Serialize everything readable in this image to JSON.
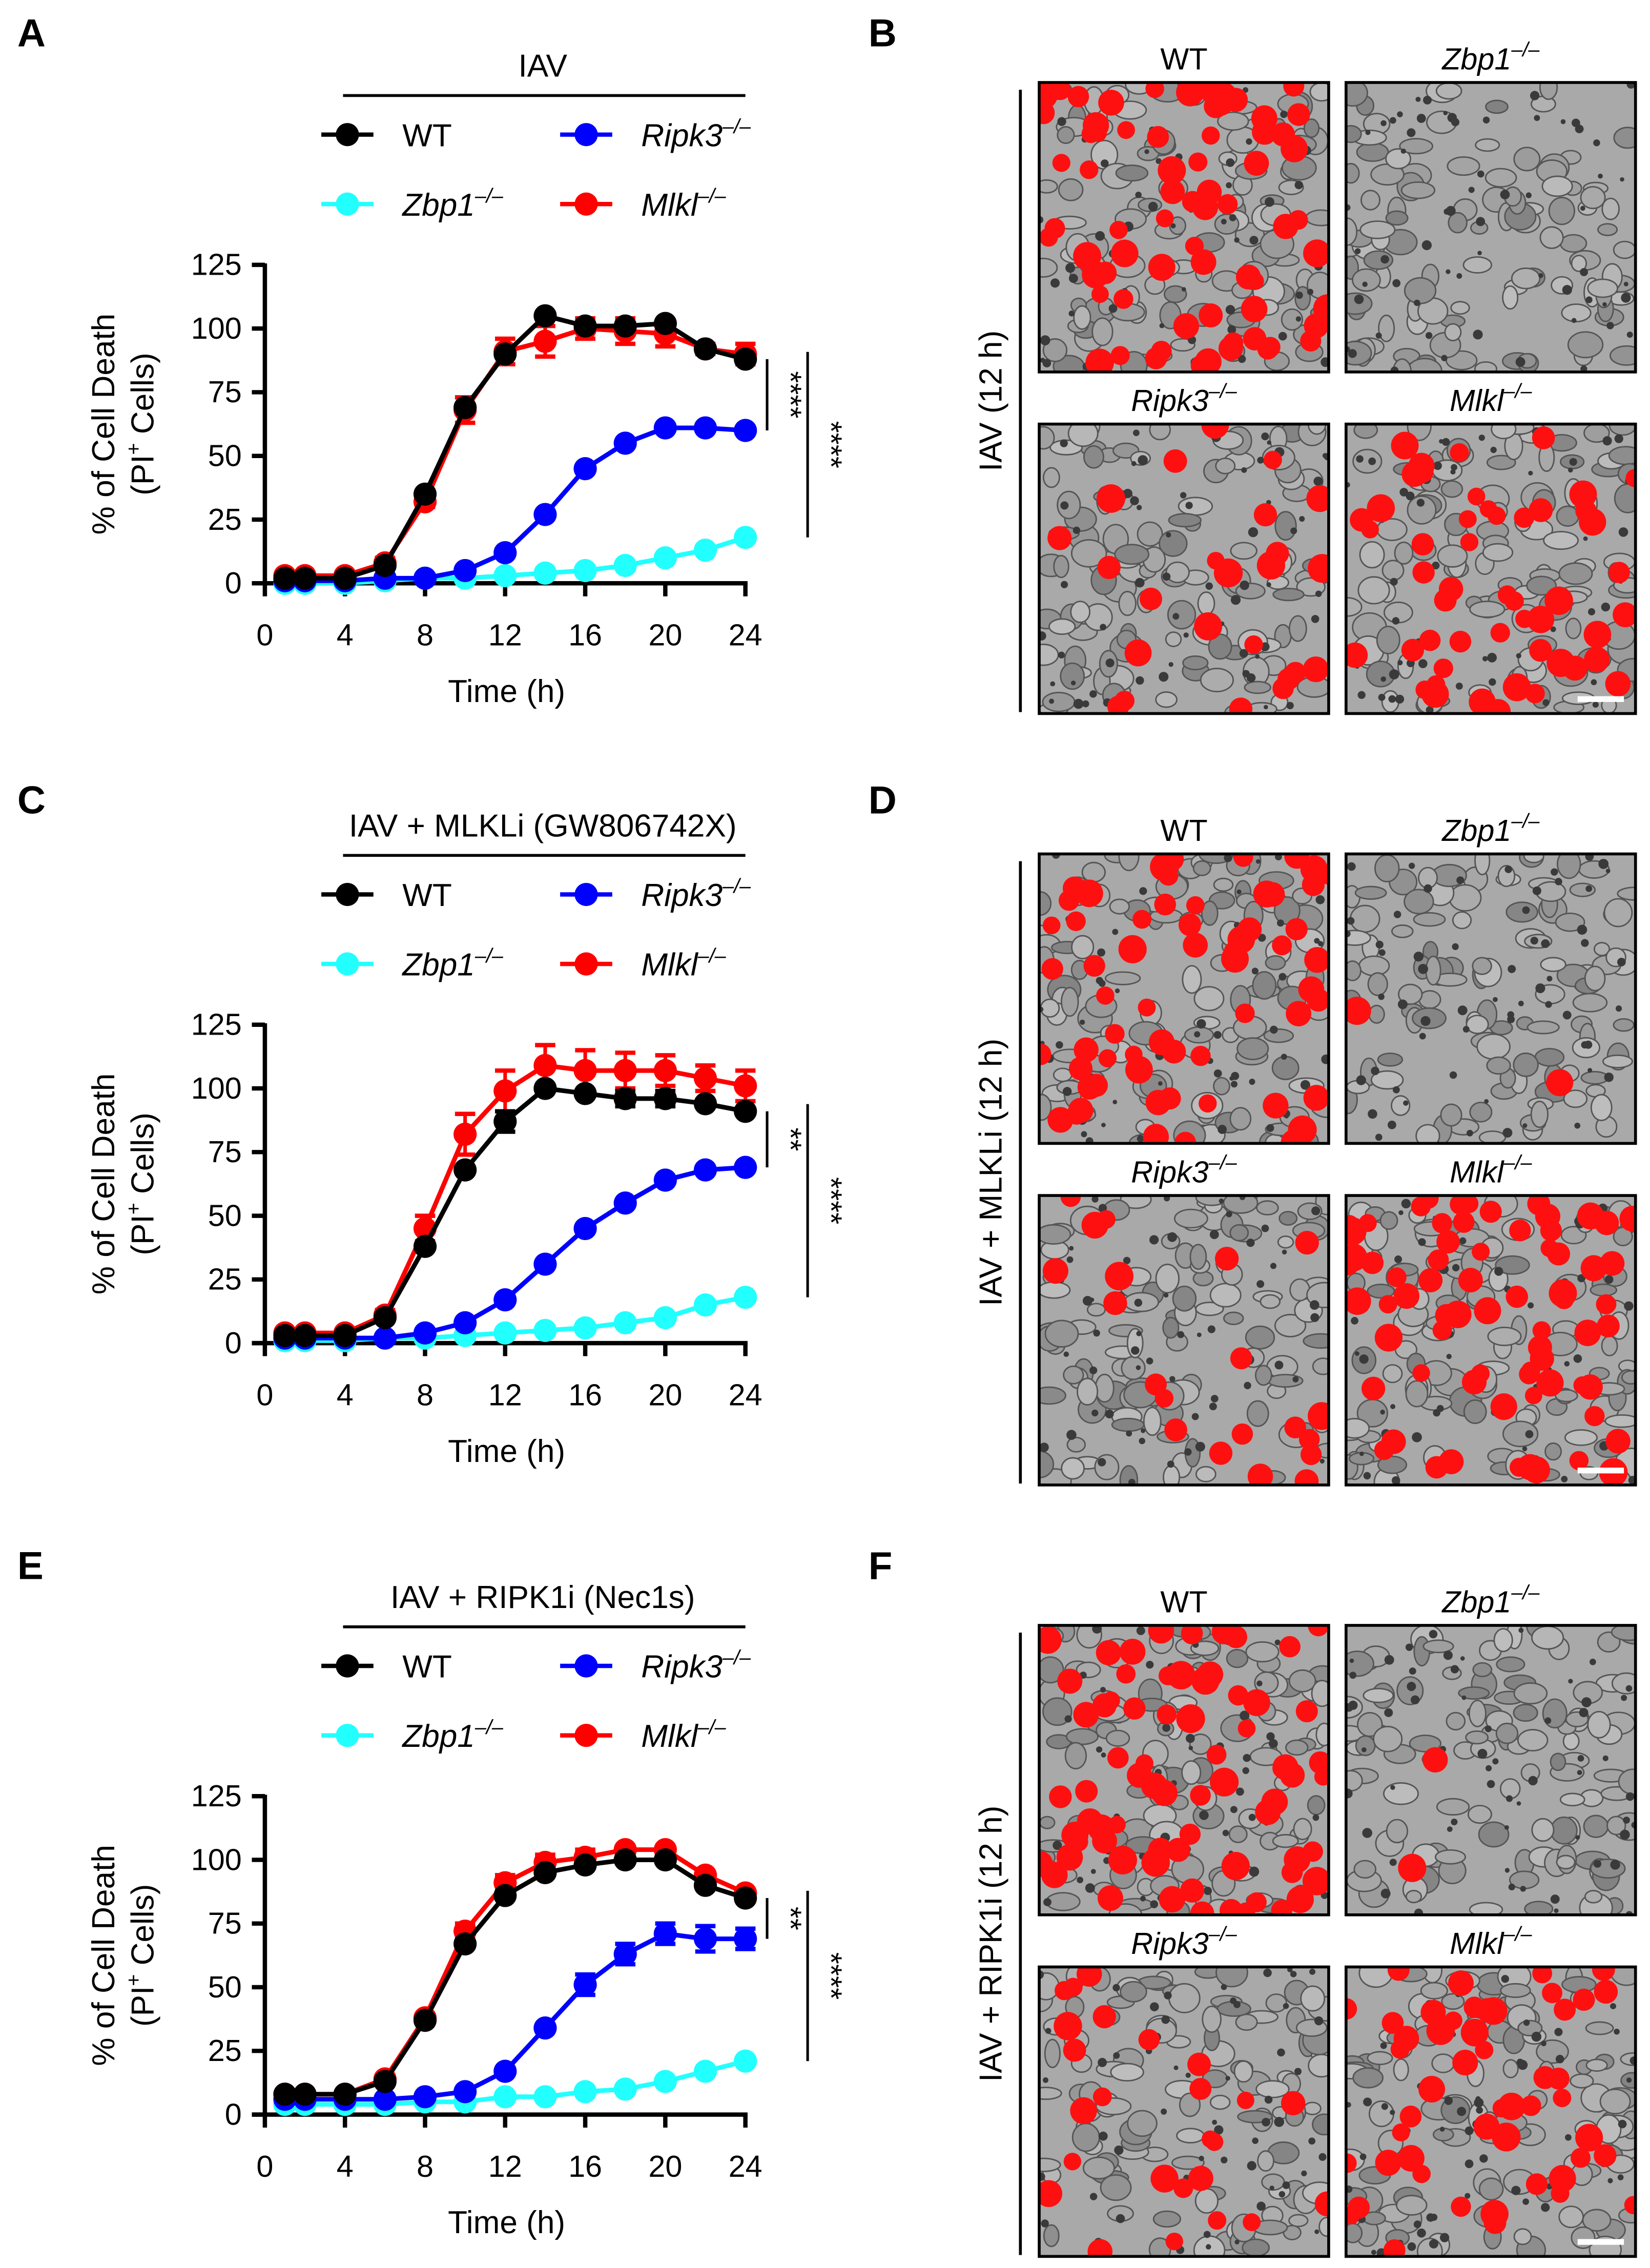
{
  "panels": {
    "A": "A",
    "B": "B",
    "C": "C",
    "D": "D",
    "E": "E",
    "F": "F"
  },
  "micrographs": [
    {
      "panel": "B",
      "side_label": "IAV (12 h)",
      "columns": [
        {
          "gene": "WT",
          "sup": ""
        },
        {
          "gene": "Zbp1",
          "sup": "–/–"
        },
        {
          "gene": "Ripk3",
          "sup": "–/–"
        },
        {
          "gene": "Mlkl",
          "sup": "–/–"
        }
      ]
    },
    {
      "panel": "D",
      "side_label": "IAV + MLKLi (12 h)",
      "columns": [
        {
          "gene": "WT",
          "sup": ""
        },
        {
          "gene": "Zbp1",
          "sup": "–/–"
        },
        {
          "gene": "Ripk3",
          "sup": "–/–"
        },
        {
          "gene": "Mlkl",
          "sup": "–/–"
        }
      ]
    },
    {
      "panel": "F",
      "side_label": "IAV + RIPK1i (12 h)",
      "columns": [
        {
          "gene": "WT",
          "sup": ""
        },
        {
          "gene": "Zbp1",
          "sup": "–/–"
        },
        {
          "gene": "Ripk3",
          "sup": "–/–"
        },
        {
          "gene": "Mlkl",
          "sup": "–/–"
        }
      ]
    }
  ],
  "chart_data": [
    {
      "type": "line",
      "panel": "A",
      "title": "IAV",
      "xlabel": "Time (h)",
      "ylabel": "% of Cell Death",
      "ylabel2_pre": "(PI",
      "ylabel2_sup": "+",
      "ylabel2_post": " Cells)",
      "xlim": [
        0,
        24
      ],
      "ylim": [
        0,
        125
      ],
      "xticks": [
        0,
        4,
        8,
        12,
        16,
        20,
        24
      ],
      "yticks": [
        0,
        25,
        50,
        75,
        100,
        125
      ],
      "x": [
        1,
        2,
        4,
        6,
        8,
        10,
        12,
        14,
        16,
        18,
        20,
        22,
        24
      ],
      "series": [
        {
          "name": "Zbp1",
          "sup": "–/–",
          "italic": true,
          "color": "#22ffff",
          "values": [
            0,
            0,
            0,
            1,
            2,
            2,
            3,
            4,
            5,
            7,
            10,
            13,
            18
          ],
          "error": [
            0,
            0,
            0,
            0,
            0,
            0,
            0,
            0,
            0,
            0,
            0,
            0,
            0
          ]
        },
        {
          "name": "Ripk3",
          "sup": "–/–",
          "italic": true,
          "color": "#0000ff",
          "values": [
            1,
            1,
            1,
            2,
            2,
            5,
            12,
            27,
            45,
            55,
            61,
            61,
            60
          ],
          "error": [
            0,
            0,
            0,
            0,
            0,
            0,
            0,
            0,
            0,
            0,
            0,
            0,
            0
          ]
        },
        {
          "name": "Mlkl",
          "sup": "–/–",
          "italic": true,
          "color": "#ff0000",
          "values": [
            3,
            3,
            3,
            8,
            32,
            68,
            91,
            95,
            100,
            99,
            98,
            92,
            90
          ],
          "error": [
            1,
            1,
            1,
            2,
            2,
            5,
            5,
            6,
            4,
            5,
            5,
            2,
            4
          ]
        },
        {
          "name": "WT",
          "sup": "",
          "italic": false,
          "color": "#000000",
          "values": [
            2,
            2,
            2,
            7,
            35,
            69,
            90,
            105,
            101,
            101,
            102,
            92,
            88
          ],
          "error": [
            0,
            0,
            0,
            0,
            0,
            0,
            0,
            0,
            0,
            0,
            0,
            0,
            0
          ]
        }
      ],
      "significance": [
        {
          "label": "****",
          "between": [
            "WT",
            "Ripk3"
          ]
        },
        {
          "label": "****",
          "between": [
            "WT",
            "Zbp1"
          ]
        }
      ]
    },
    {
      "type": "line",
      "panel": "C",
      "title": "IAV + MLKLi (GW806742X)",
      "xlabel": "Time (h)",
      "ylabel": "% of Cell Death",
      "ylabel2_pre": "(PI",
      "ylabel2_sup": "+",
      "ylabel2_post": " Cells)",
      "xlim": [
        0,
        24
      ],
      "ylim": [
        0,
        125
      ],
      "xticks": [
        0,
        4,
        8,
        12,
        16,
        20,
        24
      ],
      "yticks": [
        0,
        25,
        50,
        75,
        100,
        125
      ],
      "x": [
        1,
        2,
        4,
        6,
        8,
        10,
        12,
        14,
        16,
        18,
        20,
        22,
        24
      ],
      "series": [
        {
          "name": "Zbp1",
          "sup": "–/–",
          "italic": true,
          "color": "#22ffff",
          "values": [
            1,
            1,
            1,
            2,
            2,
            3,
            4,
            5,
            6,
            8,
            10,
            15,
            18
          ],
          "error": [
            0,
            0,
            0,
            0,
            0,
            0,
            0,
            0,
            0,
            0,
            0,
            0,
            0
          ]
        },
        {
          "name": "Ripk3",
          "sup": "–/–",
          "italic": true,
          "color": "#0000ff",
          "values": [
            2,
            2,
            2,
            2,
            4,
            8,
            17,
            31,
            45,
            55,
            64,
            68,
            69
          ],
          "error": [
            0,
            0,
            0,
            0,
            0,
            0,
            0,
            0,
            0,
            0,
            0,
            0,
            0
          ]
        },
        {
          "name": "Mlkl",
          "sup": "–/–",
          "italic": true,
          "color": "#ff0000",
          "values": [
            4,
            4,
            4,
            11,
            45,
            82,
            99,
            109,
            107,
            107,
            107,
            104,
            101
          ],
          "error": [
            1,
            1,
            1,
            2,
            5,
            8,
            8,
            8,
            8,
            7,
            6,
            5,
            6
          ]
        },
        {
          "name": "WT",
          "sup": "",
          "italic": false,
          "color": "#000000",
          "values": [
            3,
            3,
            3,
            10,
            38,
            68,
            87,
            100,
            98,
            96,
            96,
            94,
            91
          ],
          "error": [
            0,
            0,
            0,
            1,
            1,
            1,
            4,
            1,
            1,
            3,
            3,
            1,
            1
          ]
        }
      ],
      "significance": [
        {
          "label": "**",
          "between": [
            "WT",
            "Ripk3"
          ]
        },
        {
          "label": "****",
          "between": [
            "WT",
            "Zbp1"
          ]
        }
      ]
    },
    {
      "type": "line",
      "panel": "E",
      "title": "IAV + RIPK1i (Nec1s)",
      "xlabel": "Time (h)",
      "ylabel": "% of Cell Death",
      "ylabel2_pre": "(PI",
      "ylabel2_sup": "+",
      "ylabel2_post": " Cells)",
      "xlim": [
        0,
        24
      ],
      "ylim": [
        0,
        125
      ],
      "xticks": [
        0,
        4,
        8,
        12,
        16,
        20,
        24
      ],
      "yticks": [
        0,
        25,
        50,
        75,
        100,
        125
      ],
      "x": [
        1,
        2,
        4,
        6,
        8,
        10,
        12,
        14,
        16,
        18,
        20,
        22,
        24
      ],
      "series": [
        {
          "name": "Zbp1",
          "sup": "–/–",
          "italic": true,
          "color": "#22ffff",
          "values": [
            4,
            4,
            4,
            4,
            5,
            5,
            7,
            7,
            9,
            10,
            13,
            17,
            21
          ],
          "error": [
            0,
            0,
            0,
            0,
            0,
            0,
            0,
            0,
            0,
            0,
            0,
            0,
            0
          ]
        },
        {
          "name": "Ripk3",
          "sup": "–/–",
          "italic": true,
          "color": "#0000ff",
          "values": [
            6,
            6,
            6,
            6,
            7,
            9,
            17,
            34,
            51,
            63,
            71,
            69,
            69
          ],
          "error": [
            0,
            0,
            0,
            0,
            0,
            0,
            0,
            0,
            4,
            4,
            4,
            5,
            4
          ]
        },
        {
          "name": "Mlkl",
          "sup": "–/–",
          "italic": true,
          "color": "#ff0000",
          "values": [
            8,
            8,
            8,
            14,
            38,
            72,
            91,
            99,
            101,
            104,
            104,
            94,
            87
          ],
          "error": [
            0,
            0,
            0,
            1,
            1,
            3,
            3,
            3,
            3,
            1,
            1,
            1,
            1
          ]
        },
        {
          "name": "WT",
          "sup": "",
          "italic": false,
          "color": "#000000",
          "values": [
            8,
            8,
            8,
            13,
            37,
            67,
            86,
            95,
            98,
            100,
            100,
            90,
            85
          ],
          "error": [
            0,
            0,
            0,
            0,
            0,
            0,
            0,
            0,
            0,
            0,
            0,
            0,
            0
          ]
        }
      ],
      "significance": [
        {
          "label": "**",
          "between": [
            "WT",
            "Ripk3"
          ]
        },
        {
          "label": "****",
          "between": [
            "WT",
            "Zbp1"
          ]
        }
      ]
    }
  ]
}
